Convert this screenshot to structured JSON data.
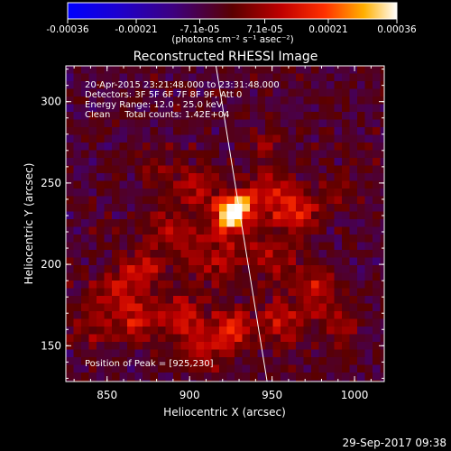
{
  "chart_data": {
    "type": "heatmap",
    "title": "Reconstructed RHESSI Image",
    "xlabel": "Heliocentric X (arcsec)",
    "ylabel": "Heliocentric Y (arcsec)",
    "xlim": [
      825,
      1018
    ],
    "ylim": [
      128,
      322
    ],
    "x_ticks": [
      850,
      900,
      950,
      1000
    ],
    "y_ticks": [
      150,
      200,
      250,
      300
    ],
    "colorbar": {
      "range": [
        -0.00036,
        0.00036
      ],
      "tick_values": [
        -0.00036,
        -0.00021,
        -7.1e-05,
        7.1e-05,
        0.00021,
        0.00036
      ],
      "tick_labels": [
        "-0.00036",
        "-0.00021",
        "-7.1e-05",
        "7.1e-05",
        "0.00021",
        "0.00036"
      ],
      "units_label": "(photons cm⁻² s⁻¹ asec⁻²)"
    },
    "annotations": [
      "20-Apr-2015 23:21:48.000 to 23:31:48.000",
      "Detectors: 3F 5F 6F 7F 8F 9F, Att 0",
      "Energy Range: 12.0 - 25.0 keV",
      "Clean     Total counts: 1.42E+04"
    ],
    "peak_label": "Position of Peak = [925,230]",
    "peak": [
      925,
      230
    ],
    "limb_line": [
      [
        916,
        322
      ],
      [
        947,
        128
      ]
    ],
    "sources": [
      {
        "x": 925,
        "y": 230,
        "sigma": 7,
        "amp": 1.0
      },
      {
        "x": 932,
        "y": 238,
        "sigma": 5,
        "amp": 0.45
      },
      {
        "x": 905,
        "y": 248,
        "sigma": 9,
        "amp": 0.35
      },
      {
        "x": 950,
        "y": 240,
        "sigma": 11,
        "amp": 0.38
      },
      {
        "x": 968,
        "y": 232,
        "sigma": 9,
        "amp": 0.32
      },
      {
        "x": 990,
        "y": 245,
        "sigma": 8,
        "amp": 0.22
      },
      {
        "x": 888,
        "y": 222,
        "sigma": 10,
        "amp": 0.32
      },
      {
        "x": 915,
        "y": 205,
        "sigma": 12,
        "amp": 0.3
      },
      {
        "x": 870,
        "y": 195,
        "sigma": 10,
        "amp": 0.34
      },
      {
        "x": 852,
        "y": 180,
        "sigma": 10,
        "amp": 0.28
      },
      {
        "x": 868,
        "y": 165,
        "sigma": 9,
        "amp": 0.36
      },
      {
        "x": 895,
        "y": 168,
        "sigma": 9,
        "amp": 0.38
      },
      {
        "x": 925,
        "y": 160,
        "sigma": 8,
        "amp": 0.55
      },
      {
        "x": 908,
        "y": 148,
        "sigma": 9,
        "amp": 0.34
      },
      {
        "x": 955,
        "y": 165,
        "sigma": 9,
        "amp": 0.38
      },
      {
        "x": 975,
        "y": 185,
        "sigma": 9,
        "amp": 0.34
      },
      {
        "x": 990,
        "y": 165,
        "sigma": 9,
        "amp": 0.28
      },
      {
        "x": 840,
        "y": 160,
        "sigma": 8,
        "amp": 0.22
      },
      {
        "x": 880,
        "y": 260,
        "sigma": 9,
        "amp": 0.2
      },
      {
        "x": 950,
        "y": 205,
        "sigma": 10,
        "amp": 0.26
      },
      {
        "x": 945,
        "y": 272,
        "sigma": 7,
        "amp": 0.18
      }
    ]
  },
  "footer": {
    "timestamp": "29-Sep-2017 09:38"
  }
}
